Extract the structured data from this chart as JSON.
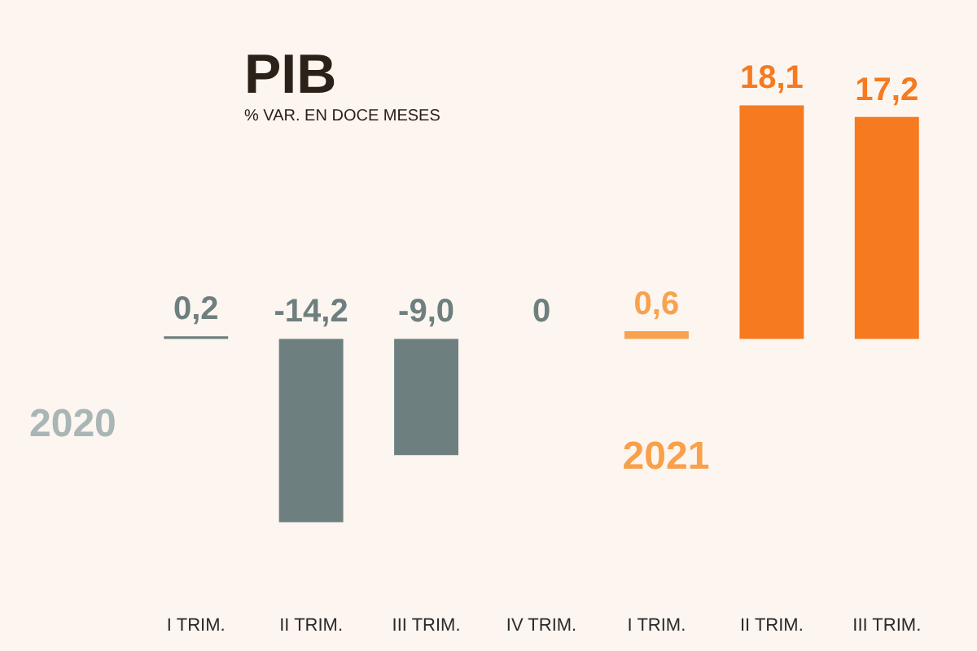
{
  "chart_data": {
    "type": "bar",
    "title": "PIB",
    "subtitle": "% VAR. EN DOCE MESES",
    "categories": [
      "I TRIM.",
      "II TRIM.",
      "III TRIM.",
      "IV TRIM.",
      "I TRIM.",
      "II TRIM.",
      "III TRIM."
    ],
    "values": [
      0.2,
      -14.2,
      -9.0,
      0,
      0.6,
      18.1,
      17.2
    ],
    "colors": [
      "#6e7f7f",
      "#6e7f7f",
      "#6e7f7f",
      "#6e7f7f",
      "#f7a24f",
      "#f57a20",
      "#f57a20"
    ],
    "value_labels": [
      "0,2",
      "-14,2",
      "-9,0",
      "0",
      "0,6",
      "18,1",
      "17,2"
    ],
    "annotations": [
      "2020",
      "2021"
    ],
    "tick_labels": "x"
  }
}
